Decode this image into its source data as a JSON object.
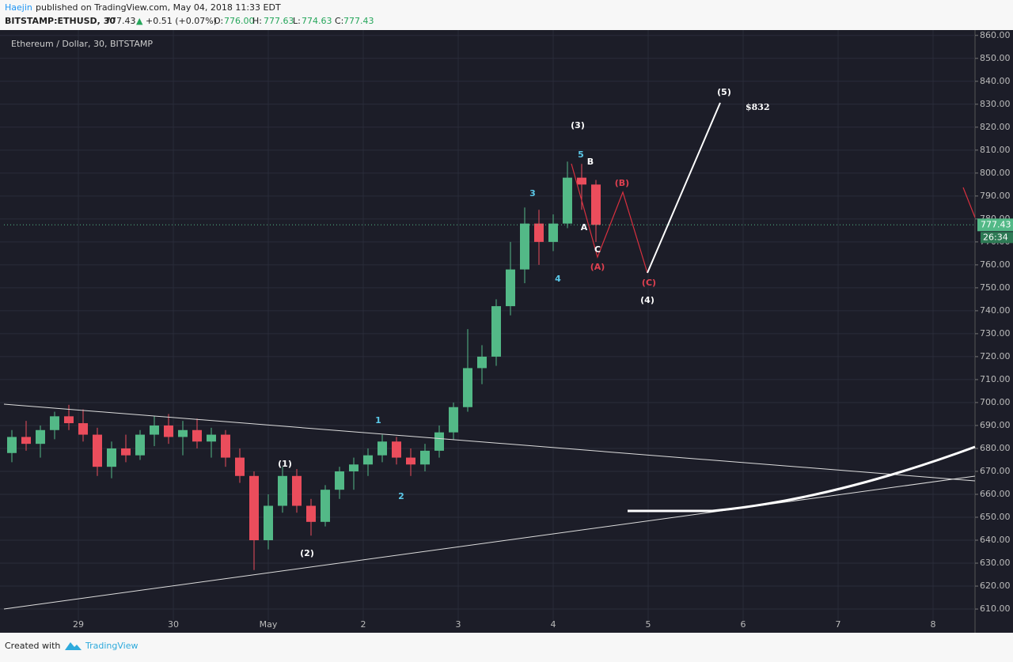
{
  "header": {
    "author": "Haejin",
    "published": "published on TradingView.com, May 04, 2018 11:33 EDT",
    "symbol": "BITSTAMP:ETHUSD, 30",
    "last": "777.43",
    "change": "+0.51 (+0.07%)",
    "o_label": "O:",
    "o": "776.00",
    "h_label": "H:",
    "h": "777.63",
    "l_label": "L:",
    "l": "774.63",
    "c_label": "C:",
    "c": "777.43"
  },
  "footer": {
    "created": "Created with",
    "brand": "TradingView"
  },
  "chart_data": {
    "type": "candlestick",
    "title": "Ethereum / Dollar, 30, BITSTAMP",
    "up_color": "#53b987",
    "down_color": "#eb4d5c",
    "x": [
      0.3,
      0.45,
      0.6,
      0.75,
      0.9,
      1.05,
      1.2,
      1.35,
      1.5,
      1.65,
      1.8,
      1.95,
      2.1,
      2.25,
      2.4,
      2.55,
      2.7,
      2.85,
      3.0,
      3.15,
      3.3,
      3.45,
      3.6,
      3.75,
      3.9,
      4.05,
      4.2,
      4.35,
      4.5,
      4.65,
      4.8,
      4.95,
      5.1,
      5.25,
      5.4,
      5.55,
      5.7,
      5.85,
      6.0,
      6.15,
      6.3,
      6.45
    ],
    "open": [
      678,
      685,
      682,
      688,
      694,
      691,
      686,
      672,
      680,
      677,
      686,
      690,
      685,
      688,
      683,
      686,
      676,
      668,
      640,
      655,
      668,
      655,
      648,
      662,
      670,
      673,
      677,
      683,
      676,
      673,
      679,
      687,
      698,
      715,
      720,
      742,
      758,
      778,
      770,
      778,
      798,
      795
    ],
    "high": [
      688,
      692,
      690,
      696,
      699,
      697,
      689,
      683,
      686,
      688,
      694,
      695,
      692,
      693,
      689,
      688,
      680,
      670,
      660,
      672,
      671,
      658,
      664,
      672,
      676,
      680,
      686,
      685,
      680,
      682,
      690,
      700,
      732,
      725,
      745,
      770,
      785,
      784,
      782,
      805,
      804,
      797
    ],
    "low": [
      674,
      679,
      676,
      684,
      688,
      683,
      668,
      667,
      674,
      675,
      681,
      682,
      677,
      680,
      676,
      672,
      665,
      627,
      636,
      652,
      652,
      642,
      646,
      658,
      662,
      668,
      674,
      673,
      668,
      670,
      676,
      684,
      696,
      708,
      716,
      738,
      752,
      760,
      766,
      776,
      784,
      770
    ],
    "close": [
      685,
      682,
      688,
      694,
      691,
      686,
      672,
      680,
      677,
      686,
      690,
      685,
      688,
      683,
      686,
      676,
      668,
      640,
      655,
      668,
      655,
      648,
      662,
      670,
      673,
      677,
      683,
      676,
      673,
      679,
      687,
      698,
      715,
      720,
      742,
      758,
      778,
      770,
      778,
      798,
      795,
      777.43
    ],
    "xlim": [
      0.2167,
      10.4417
    ],
    "xticks": [
      {
        "value": 1,
        "label": "29"
      },
      {
        "value": 2,
        "label": "30"
      },
      {
        "value": 3,
        "label": "May"
      },
      {
        "value": 4,
        "label": "2"
      },
      {
        "value": 5,
        "label": "3"
      },
      {
        "value": 6,
        "label": "4"
      },
      {
        "value": 7,
        "label": "5"
      },
      {
        "value": 8,
        "label": "6"
      },
      {
        "value": 9,
        "label": "7"
      },
      {
        "value": 10,
        "label": "8"
      }
    ],
    "ylim": [
      607.26,
      861.64
    ],
    "yticks": [
      {
        "value": 610,
        "label": "610.00"
      },
      {
        "value": 620,
        "label": "620.00"
      },
      {
        "value": 630,
        "label": "630.00"
      },
      {
        "value": 640,
        "label": "640.00"
      },
      {
        "value": 650,
        "label": "650.00"
      },
      {
        "value": 660,
        "label": "660.00"
      },
      {
        "value": 670,
        "label": "670.00"
      },
      {
        "value": 680,
        "label": "680.00"
      },
      {
        "value": 690,
        "label": "690.00"
      },
      {
        "value": 700,
        "label": "700.00"
      },
      {
        "value": 710,
        "label": "710.00"
      },
      {
        "value": 720,
        "label": "720.00"
      },
      {
        "value": 730,
        "label": "730.00"
      },
      {
        "value": 740,
        "label": "740.00"
      },
      {
        "value": 750,
        "label": "750.00"
      },
      {
        "value": 760,
        "label": "760.00"
      },
      {
        "value": 770,
        "label": "770.00"
      },
      {
        "value": 780,
        "label": "780.00"
      },
      {
        "value": 790,
        "label": "790.00"
      },
      {
        "value": 800,
        "label": "800.00"
      },
      {
        "value": 810,
        "label": "810.00"
      },
      {
        "value": 820,
        "label": "820.00"
      },
      {
        "value": 830,
        "label": "830.00"
      },
      {
        "value": 840,
        "label": "840.00"
      },
      {
        "value": 850,
        "label": "850.00"
      },
      {
        "value": 860,
        "label": "860.00"
      }
    ],
    "grid": true,
    "price_tag": {
      "value": 777.43,
      "label": "777.43"
    },
    "countdown": "26:34",
    "annotations": [
      "(5)",
      "$832",
      "(3)",
      "5",
      "B",
      "3",
      "(B)",
      "A",
      "C",
      "(A)",
      "4",
      "(C)",
      "(4)",
      "1",
      "(1)",
      "2",
      "(2)"
    ]
  }
}
